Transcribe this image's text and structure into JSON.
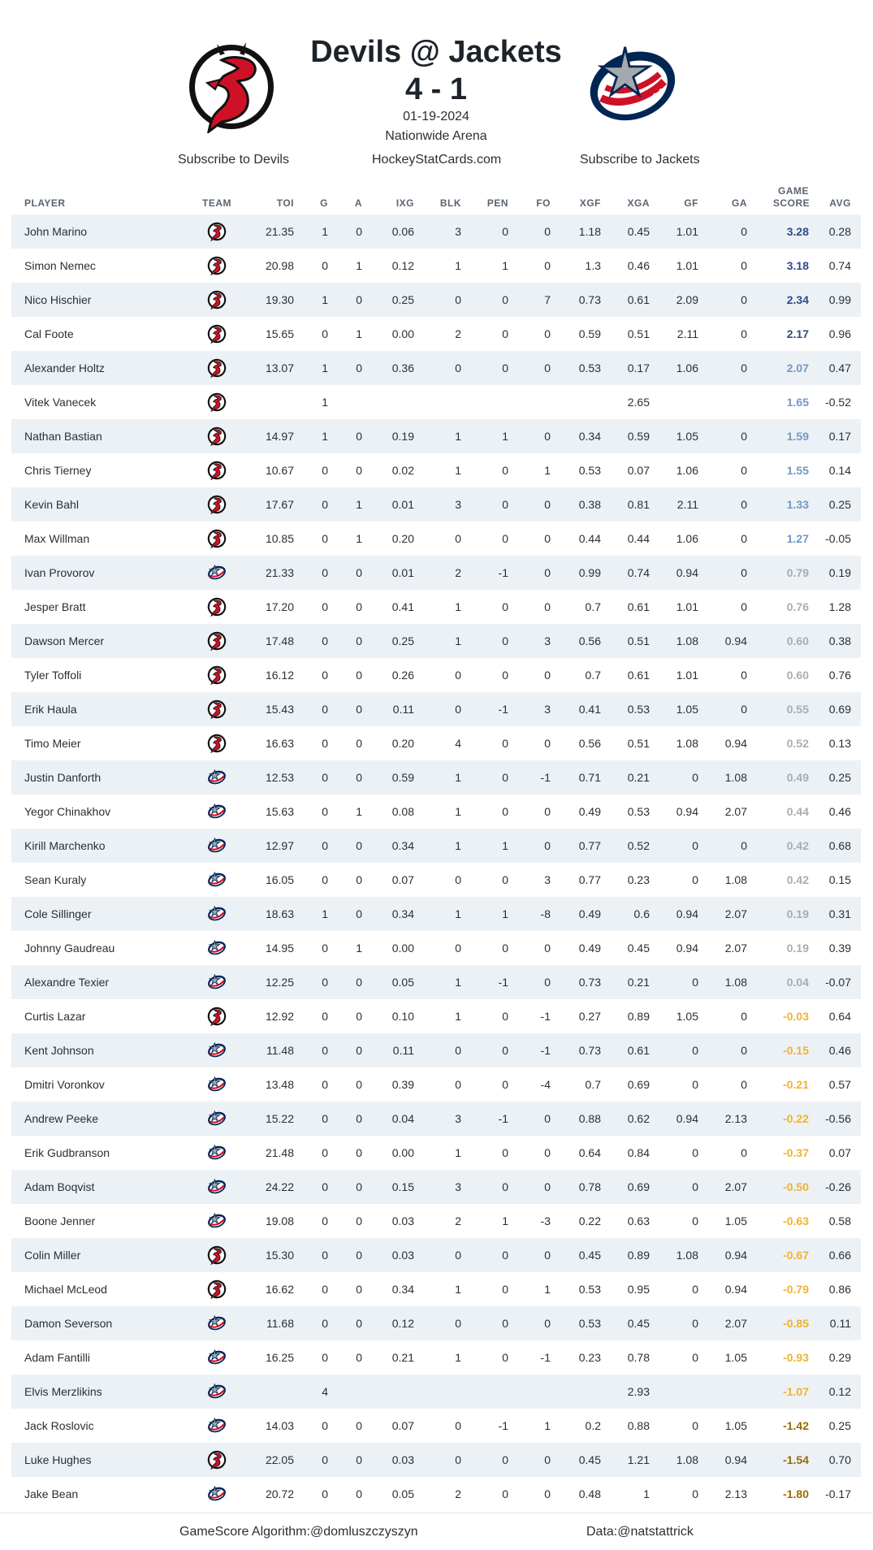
{
  "header": {
    "title": "Devils @ Jackets",
    "score": "4 - 1",
    "date": "01-19-2024",
    "venue": "Nationwide Arena"
  },
  "links": {
    "devils": "Subscribe to Devils",
    "site": "HockeyStatCards.com",
    "jackets": "Subscribe to Jackets"
  },
  "columns": [
    "PLAYER",
    "TEAM",
    "TOI",
    "G",
    "A",
    "IXG",
    "BLK",
    "PEN",
    "FO",
    "XGF",
    "XGA",
    "GF",
    "GA",
    "GAME SCORE",
    "AVG"
  ],
  "teams": {
    "NJD": {
      "icon": "devils-logo-icon",
      "color": "#ce1126"
    },
    "CBJ": {
      "icon": "blue-jackets-logo-icon",
      "color": "#002654"
    }
  },
  "game_score_colors": {
    "high": "#2f4b8a",
    "medium": "#6f9ac7",
    "neutral": "#a9adb3",
    "low": "#f0b32e",
    "very_low": "#9c6b00"
  },
  "players": [
    {
      "name": "John Marino",
      "team": "NJD",
      "toi": "21.35",
      "g": "1",
      "a": "0",
      "ixg": "0.06",
      "blk": "3",
      "pen": "0",
      "fo": "0",
      "xgf": "1.18",
      "xga": "0.45",
      "gf": "1.01",
      "ga": "0",
      "gs": "3.28",
      "avg": "0.28",
      "tier": "high"
    },
    {
      "name": "Simon Nemec",
      "team": "NJD",
      "toi": "20.98",
      "g": "0",
      "a": "1",
      "ixg": "0.12",
      "blk": "1",
      "pen": "1",
      "fo": "0",
      "xgf": "1.3",
      "xga": "0.46",
      "gf": "1.01",
      "ga": "0",
      "gs": "3.18",
      "avg": "0.74",
      "tier": "high"
    },
    {
      "name": "Nico Hischier",
      "team": "NJD",
      "toi": "19.30",
      "g": "1",
      "a": "0",
      "ixg": "0.25",
      "blk": "0",
      "pen": "0",
      "fo": "7",
      "xgf": "0.73",
      "xga": "0.61",
      "gf": "2.09",
      "ga": "0",
      "gs": "2.34",
      "avg": "0.99",
      "tier": "high"
    },
    {
      "name": "Cal Foote",
      "team": "NJD",
      "toi": "15.65",
      "g": "0",
      "a": "1",
      "ixg": "0.00",
      "blk": "2",
      "pen": "0",
      "fo": "0",
      "xgf": "0.59",
      "xga": "0.51",
      "gf": "2.11",
      "ga": "0",
      "gs": "2.17",
      "avg": "0.96",
      "tier": "high"
    },
    {
      "name": "Alexander Holtz",
      "team": "NJD",
      "toi": "13.07",
      "g": "1",
      "a": "0",
      "ixg": "0.36",
      "blk": "0",
      "pen": "0",
      "fo": "0",
      "xgf": "0.53",
      "xga": "0.17",
      "gf": "1.06",
      "ga": "0",
      "gs": "2.07",
      "avg": "0.47",
      "tier": "medium"
    },
    {
      "name": "Vitek Vanecek",
      "team": "NJD",
      "toi": "",
      "g": "1",
      "a": "",
      "ixg": "",
      "blk": "",
      "pen": "",
      "fo": "",
      "xgf": "",
      "xga": "2.65",
      "gf": "",
      "ga": "",
      "gs": "1.65",
      "avg": "-0.52",
      "tier": "medium"
    },
    {
      "name": "Nathan Bastian",
      "team": "NJD",
      "toi": "14.97",
      "g": "1",
      "a": "0",
      "ixg": "0.19",
      "blk": "1",
      "pen": "1",
      "fo": "0",
      "xgf": "0.34",
      "xga": "0.59",
      "gf": "1.05",
      "ga": "0",
      "gs": "1.59",
      "avg": "0.17",
      "tier": "medium"
    },
    {
      "name": "Chris Tierney",
      "team": "NJD",
      "toi": "10.67",
      "g": "0",
      "a": "0",
      "ixg": "0.02",
      "blk": "1",
      "pen": "0",
      "fo": "1",
      "xgf": "0.53",
      "xga": "0.07",
      "gf": "1.06",
      "ga": "0",
      "gs": "1.55",
      "avg": "0.14",
      "tier": "medium"
    },
    {
      "name": "Kevin Bahl",
      "team": "NJD",
      "toi": "17.67",
      "g": "0",
      "a": "1",
      "ixg": "0.01",
      "blk": "3",
      "pen": "0",
      "fo": "0",
      "xgf": "0.38",
      "xga": "0.81",
      "gf": "2.11",
      "ga": "0",
      "gs": "1.33",
      "avg": "0.25",
      "tier": "medium"
    },
    {
      "name": "Max Willman",
      "team": "NJD",
      "toi": "10.85",
      "g": "0",
      "a": "1",
      "ixg": "0.20",
      "blk": "0",
      "pen": "0",
      "fo": "0",
      "xgf": "0.44",
      "xga": "0.44",
      "gf": "1.06",
      "ga": "0",
      "gs": "1.27",
      "avg": "-0.05",
      "tier": "medium"
    },
    {
      "name": "Ivan Provorov",
      "team": "CBJ",
      "toi": "21.33",
      "g": "0",
      "a": "0",
      "ixg": "0.01",
      "blk": "2",
      "pen": "-1",
      "fo": "0",
      "xgf": "0.99",
      "xga": "0.74",
      "gf": "0.94",
      "ga": "0",
      "gs": "0.79",
      "avg": "0.19",
      "tier": "neutral"
    },
    {
      "name": "Jesper Bratt",
      "team": "NJD",
      "toi": "17.20",
      "g": "0",
      "a": "0",
      "ixg": "0.41",
      "blk": "1",
      "pen": "0",
      "fo": "0",
      "xgf": "0.7",
      "xga": "0.61",
      "gf": "1.01",
      "ga": "0",
      "gs": "0.76",
      "avg": "1.28",
      "tier": "neutral"
    },
    {
      "name": "Dawson Mercer",
      "team": "NJD",
      "toi": "17.48",
      "g": "0",
      "a": "0",
      "ixg": "0.25",
      "blk": "1",
      "pen": "0",
      "fo": "3",
      "xgf": "0.56",
      "xga": "0.51",
      "gf": "1.08",
      "ga": "0.94",
      "gs": "0.60",
      "avg": "0.38",
      "tier": "neutral"
    },
    {
      "name": "Tyler Toffoli",
      "team": "NJD",
      "toi": "16.12",
      "g": "0",
      "a": "0",
      "ixg": "0.26",
      "blk": "0",
      "pen": "0",
      "fo": "0",
      "xgf": "0.7",
      "xga": "0.61",
      "gf": "1.01",
      "ga": "0",
      "gs": "0.60",
      "avg": "0.76",
      "tier": "neutral"
    },
    {
      "name": "Erik Haula",
      "team": "NJD",
      "toi": "15.43",
      "g": "0",
      "a": "0",
      "ixg": "0.11",
      "blk": "0",
      "pen": "-1",
      "fo": "3",
      "xgf": "0.41",
      "xga": "0.53",
      "gf": "1.05",
      "ga": "0",
      "gs": "0.55",
      "avg": "0.69",
      "tier": "neutral"
    },
    {
      "name": "Timo Meier",
      "team": "NJD",
      "toi": "16.63",
      "g": "0",
      "a": "0",
      "ixg": "0.20",
      "blk": "4",
      "pen": "0",
      "fo": "0",
      "xgf": "0.56",
      "xga": "0.51",
      "gf": "1.08",
      "ga": "0.94",
      "gs": "0.52",
      "avg": "0.13",
      "tier": "neutral"
    },
    {
      "name": "Justin Danforth",
      "team": "CBJ",
      "toi": "12.53",
      "g": "0",
      "a": "0",
      "ixg": "0.59",
      "blk": "1",
      "pen": "0",
      "fo": "-1",
      "xgf": "0.71",
      "xga": "0.21",
      "gf": "0",
      "ga": "1.08",
      "gs": "0.49",
      "avg": "0.25",
      "tier": "neutral"
    },
    {
      "name": "Yegor Chinakhov",
      "team": "CBJ",
      "toi": "15.63",
      "g": "0",
      "a": "1",
      "ixg": "0.08",
      "blk": "1",
      "pen": "0",
      "fo": "0",
      "xgf": "0.49",
      "xga": "0.53",
      "gf": "0.94",
      "ga": "2.07",
      "gs": "0.44",
      "avg": "0.46",
      "tier": "neutral"
    },
    {
      "name": "Kirill Marchenko",
      "team": "CBJ",
      "toi": "12.97",
      "g": "0",
      "a": "0",
      "ixg": "0.34",
      "blk": "1",
      "pen": "1",
      "fo": "0",
      "xgf": "0.77",
      "xga": "0.52",
      "gf": "0",
      "ga": "0",
      "gs": "0.42",
      "avg": "0.68",
      "tier": "neutral"
    },
    {
      "name": "Sean Kuraly",
      "team": "CBJ",
      "toi": "16.05",
      "g": "0",
      "a": "0",
      "ixg": "0.07",
      "blk": "0",
      "pen": "0",
      "fo": "3",
      "xgf": "0.77",
      "xga": "0.23",
      "gf": "0",
      "ga": "1.08",
      "gs": "0.42",
      "avg": "0.15",
      "tier": "neutral"
    },
    {
      "name": "Cole Sillinger",
      "team": "CBJ",
      "toi": "18.63",
      "g": "1",
      "a": "0",
      "ixg": "0.34",
      "blk": "1",
      "pen": "1",
      "fo": "-8",
      "xgf": "0.49",
      "xga": "0.6",
      "gf": "0.94",
      "ga": "2.07",
      "gs": "0.19",
      "avg": "0.31",
      "tier": "neutral"
    },
    {
      "name": "Johnny Gaudreau",
      "team": "CBJ",
      "toi": "14.95",
      "g": "0",
      "a": "1",
      "ixg": "0.00",
      "blk": "0",
      "pen": "0",
      "fo": "0",
      "xgf": "0.49",
      "xga": "0.45",
      "gf": "0.94",
      "ga": "2.07",
      "gs": "0.19",
      "avg": "0.39",
      "tier": "neutral"
    },
    {
      "name": "Alexandre Texier",
      "team": "CBJ",
      "toi": "12.25",
      "g": "0",
      "a": "0",
      "ixg": "0.05",
      "blk": "1",
      "pen": "-1",
      "fo": "0",
      "xgf": "0.73",
      "xga": "0.21",
      "gf": "0",
      "ga": "1.08",
      "gs": "0.04",
      "avg": "-0.07",
      "tier": "neutral"
    },
    {
      "name": "Curtis Lazar",
      "team": "NJD",
      "toi": "12.92",
      "g": "0",
      "a": "0",
      "ixg": "0.10",
      "blk": "1",
      "pen": "0",
      "fo": "-1",
      "xgf": "0.27",
      "xga": "0.89",
      "gf": "1.05",
      "ga": "0",
      "gs": "-0.03",
      "avg": "0.64",
      "tier": "low"
    },
    {
      "name": "Kent Johnson",
      "team": "CBJ",
      "toi": "11.48",
      "g": "0",
      "a": "0",
      "ixg": "0.11",
      "blk": "0",
      "pen": "0",
      "fo": "-1",
      "xgf": "0.73",
      "xga": "0.61",
      "gf": "0",
      "ga": "0",
      "gs": "-0.15",
      "avg": "0.46",
      "tier": "low"
    },
    {
      "name": "Dmitri Voronkov",
      "team": "CBJ",
      "toi": "13.48",
      "g": "0",
      "a": "0",
      "ixg": "0.39",
      "blk": "0",
      "pen": "0",
      "fo": "-4",
      "xgf": "0.7",
      "xga": "0.69",
      "gf": "0",
      "ga": "0",
      "gs": "-0.21",
      "avg": "0.57",
      "tier": "low"
    },
    {
      "name": "Andrew Peeke",
      "team": "CBJ",
      "toi": "15.22",
      "g": "0",
      "a": "0",
      "ixg": "0.04",
      "blk": "3",
      "pen": "-1",
      "fo": "0",
      "xgf": "0.88",
      "xga": "0.62",
      "gf": "0.94",
      "ga": "2.13",
      "gs": "-0.22",
      "avg": "-0.56",
      "tier": "low"
    },
    {
      "name": "Erik Gudbranson",
      "team": "CBJ",
      "toi": "21.48",
      "g": "0",
      "a": "0",
      "ixg": "0.00",
      "blk": "1",
      "pen": "0",
      "fo": "0",
      "xgf": "0.64",
      "xga": "0.84",
      "gf": "0",
      "ga": "0",
      "gs": "-0.37",
      "avg": "0.07",
      "tier": "low"
    },
    {
      "name": "Adam Boqvist",
      "team": "CBJ",
      "toi": "24.22",
      "g": "0",
      "a": "0",
      "ixg": "0.15",
      "blk": "3",
      "pen": "0",
      "fo": "0",
      "xgf": "0.78",
      "xga": "0.69",
      "gf": "0",
      "ga": "2.07",
      "gs": "-0.50",
      "avg": "-0.26",
      "tier": "low"
    },
    {
      "name": "Boone Jenner",
      "team": "CBJ",
      "toi": "19.08",
      "g": "0",
      "a": "0",
      "ixg": "0.03",
      "blk": "2",
      "pen": "1",
      "fo": "-3",
      "xgf": "0.22",
      "xga": "0.63",
      "gf": "0",
      "ga": "1.05",
      "gs": "-0.63",
      "avg": "0.58",
      "tier": "low"
    },
    {
      "name": "Colin Miller",
      "team": "NJD",
      "toi": "15.30",
      "g": "0",
      "a": "0",
      "ixg": "0.03",
      "blk": "0",
      "pen": "0",
      "fo": "0",
      "xgf": "0.45",
      "xga": "0.89",
      "gf": "1.08",
      "ga": "0.94",
      "gs": "-0.67",
      "avg": "0.66",
      "tier": "low"
    },
    {
      "name": "Michael McLeod",
      "team": "NJD",
      "toi": "16.62",
      "g": "0",
      "a": "0",
      "ixg": "0.34",
      "blk": "1",
      "pen": "0",
      "fo": "1",
      "xgf": "0.53",
      "xga": "0.95",
      "gf": "0",
      "ga": "0.94",
      "gs": "-0.79",
      "avg": "0.86",
      "tier": "low"
    },
    {
      "name": "Damon Severson",
      "team": "CBJ",
      "toi": "11.68",
      "g": "0",
      "a": "0",
      "ixg": "0.12",
      "blk": "0",
      "pen": "0",
      "fo": "0",
      "xgf": "0.53",
      "xga": "0.45",
      "gf": "0",
      "ga": "2.07",
      "gs": "-0.85",
      "avg": "0.11",
      "tier": "low"
    },
    {
      "name": "Adam Fantilli",
      "team": "CBJ",
      "toi": "16.25",
      "g": "0",
      "a": "0",
      "ixg": "0.21",
      "blk": "1",
      "pen": "0",
      "fo": "-1",
      "xgf": "0.23",
      "xga": "0.78",
      "gf": "0",
      "ga": "1.05",
      "gs": "-0.93",
      "avg": "0.29",
      "tier": "low"
    },
    {
      "name": "Elvis Merzlikins",
      "team": "CBJ",
      "toi": "",
      "g": "4",
      "a": "",
      "ixg": "",
      "blk": "",
      "pen": "",
      "fo": "",
      "xgf": "",
      "xga": "2.93",
      "gf": "",
      "ga": "",
      "gs": "-1.07",
      "avg": "0.12",
      "tier": "low"
    },
    {
      "name": "Jack Roslovic",
      "team": "CBJ",
      "toi": "14.03",
      "g": "0",
      "a": "0",
      "ixg": "0.07",
      "blk": "0",
      "pen": "-1",
      "fo": "1",
      "xgf": "0.2",
      "xga": "0.88",
      "gf": "0",
      "ga": "1.05",
      "gs": "-1.42",
      "avg": "0.25",
      "tier": "very_low"
    },
    {
      "name": "Luke Hughes",
      "team": "NJD",
      "toi": "22.05",
      "g": "0",
      "a": "0",
      "ixg": "0.03",
      "blk": "0",
      "pen": "0",
      "fo": "0",
      "xgf": "0.45",
      "xga": "1.21",
      "gf": "1.08",
      "ga": "0.94",
      "gs": "-1.54",
      "avg": "0.70",
      "tier": "very_low"
    },
    {
      "name": "Jake Bean",
      "team": "CBJ",
      "toi": "20.72",
      "g": "0",
      "a": "0",
      "ixg": "0.05",
      "blk": "2",
      "pen": "0",
      "fo": "0",
      "xgf": "0.48",
      "xga": "1",
      "gf": "0",
      "ga": "2.13",
      "gs": "-1.80",
      "avg": "-0.17",
      "tier": "very_low"
    }
  ],
  "footer": {
    "algorithm": "GameScore Algorithm:@domluszczyszyn",
    "data": "Data:@natstattrick"
  }
}
